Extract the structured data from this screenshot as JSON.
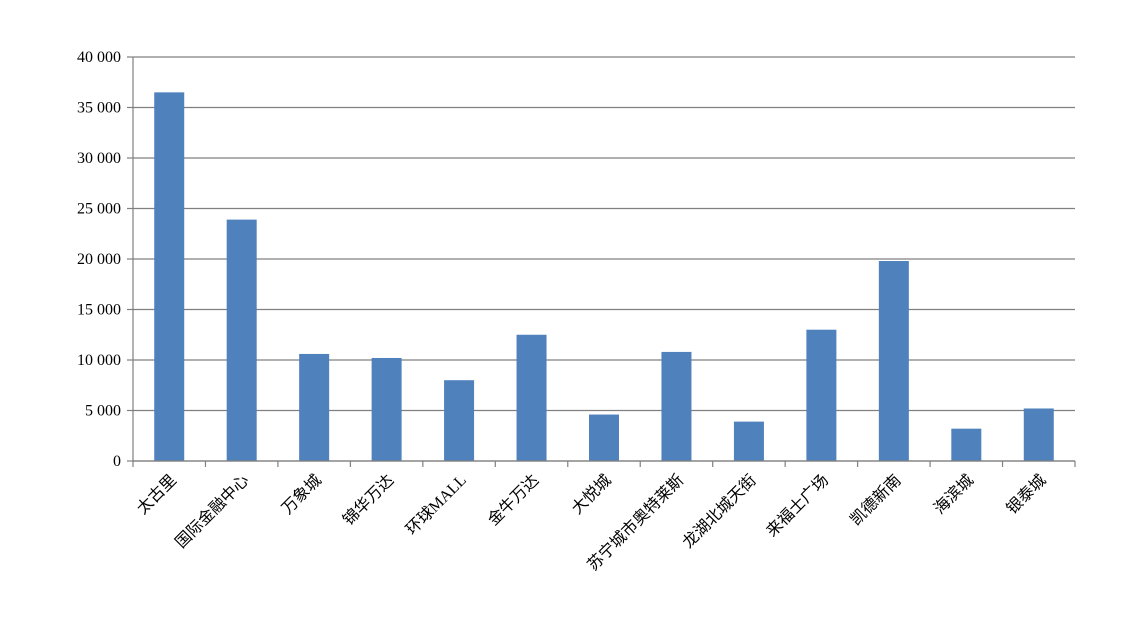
{
  "chart_data": {
    "type": "bar",
    "categories": [
      "太古里",
      "国际金融中心",
      "万象城",
      "锦华万达",
      "环球MALL",
      "金牛万达",
      "大悦城",
      "苏宁城市奥特莱斯",
      "龙湖北城天街",
      "来福士广场",
      "凯德新南",
      "海滨城",
      "银泰城"
    ],
    "values": [
      36500,
      23900,
      10600,
      10200,
      8000,
      12500,
      4600,
      10800,
      3900,
      13000,
      19800,
      3200,
      5200
    ],
    "color": "#4f81bd",
    "ylim": [
      0,
      40000
    ],
    "yticks": [
      0,
      {
        "value": 5000,
        "label": "5 000"
      },
      {
        "value": 10000,
        "label": "10 000"
      },
      {
        "value": 15000,
        "label": "15 000"
      },
      {
        "value": 20000,
        "label": "20 000"
      },
      {
        "value": 25000,
        "label": "25 000"
      },
      {
        "value": 30000,
        "label": "30 000"
      },
      {
        "value": 35000,
        "label": "35 000"
      },
      {
        "value": 40000,
        "label": "40 000"
      }
    ],
    "grid": true
  }
}
